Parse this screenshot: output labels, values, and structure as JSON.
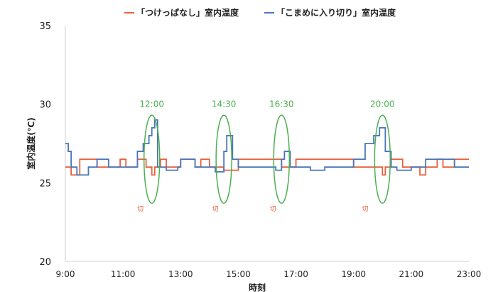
{
  "chart_data": {
    "type": "line",
    "title": "",
    "xlabel": "時刻",
    "ylabel": "室内温度(℃)",
    "xlim": [
      "9:00",
      "23:00"
    ],
    "ylim": [
      20,
      35
    ],
    "x_ticks": [
      "9:00",
      "11:00",
      "13:00",
      "15:00",
      "17:00",
      "19:00",
      "21:00",
      "23:00"
    ],
    "y_ticks": [
      "20",
      "25",
      "30",
      "35"
    ],
    "grid": false,
    "legend_position": "top",
    "series": [
      {
        "name": "「つけっぱなし」室内温度",
        "color": "#e8603c",
        "faded_color": "#f2b39d",
        "x": [
          "9:00",
          "9:12",
          "9:30",
          "9:42",
          "10:06",
          "10:30",
          "10:54",
          "11:06",
          "11:30",
          "11:48",
          "12:00",
          "12:06",
          "12:18",
          "12:30",
          "13:00",
          "13:30",
          "13:42",
          "14:00",
          "14:30",
          "15:00",
          "15:30",
          "16:00",
          "16:18",
          "16:30",
          "17:00",
          "17:30",
          "18:00",
          "18:30",
          "19:00",
          "19:30",
          "19:54",
          "20:00",
          "20:06",
          "20:18",
          "20:24",
          "20:42",
          "21:00",
          "21:18",
          "21:30",
          "21:54",
          "22:06",
          "22:30",
          "22:48",
          "23:00"
        ],
        "y": [
          26.0,
          25.5,
          26.5,
          26.5,
          26.0,
          26.0,
          26.5,
          26.0,
          26.5,
          26.0,
          25.5,
          26.0,
          26.5,
          26.0,
          26.5,
          26.0,
          26.5,
          26.0,
          25.8,
          26.5,
          26.5,
          26.5,
          26.5,
          26.0,
          26.5,
          26.5,
          26.5,
          26.5,
          26.0,
          26.0,
          26.0,
          25.5,
          26.0,
          26.5,
          26.5,
          26.0,
          26.0,
          25.5,
          26.0,
          26.5,
          26.0,
          26.5,
          26.5,
          26.5
        ]
      },
      {
        "name": "「こまめに入り切り」室内温度",
        "color": "#4a76b8",
        "faded_color": "#aab8d8",
        "x": [
          "9:00",
          "9:06",
          "9:12",
          "9:24",
          "9:48",
          "10:06",
          "10:30",
          "10:54",
          "11:06",
          "11:30",
          "11:42",
          "11:54",
          "12:00",
          "12:06",
          "12:12",
          "12:30",
          "12:54",
          "13:00",
          "13:30",
          "14:00",
          "14:12",
          "14:30",
          "14:36",
          "14:48",
          "15:00",
          "15:30",
          "16:00",
          "16:18",
          "16:30",
          "16:36",
          "16:48",
          "17:00",
          "17:30",
          "18:00",
          "18:30",
          "19:00",
          "19:24",
          "19:42",
          "19:54",
          "20:00",
          "20:06",
          "20:18",
          "20:30",
          "21:00",
          "21:30",
          "22:00",
          "22:30",
          "23:00"
        ],
        "y": [
          27.5,
          27.0,
          26.0,
          25.5,
          26.0,
          26.5,
          26.0,
          26.0,
          26.0,
          27.0,
          27.5,
          28.0,
          28.5,
          29.0,
          26.0,
          25.8,
          26.0,
          26.5,
          26.0,
          26.0,
          25.7,
          27.0,
          28.0,
          26.5,
          26.0,
          26.0,
          26.0,
          25.8,
          26.5,
          27.0,
          26.0,
          26.0,
          25.8,
          26.0,
          26.0,
          26.5,
          27.5,
          28.0,
          28.5,
          28.5,
          27.0,
          26.0,
          25.8,
          26.0,
          26.5,
          26.5,
          26.0,
          26.0
        ]
      }
    ],
    "annotations": [
      {
        "text": "12:00",
        "x": "12:00",
        "y": 30
      },
      {
        "text": "14:30",
        "x": "14:30",
        "y": 30
      },
      {
        "text": "16:30",
        "x": "16:30",
        "y": 30
      },
      {
        "text": "20:00",
        "x": "20:00",
        "y": 30
      },
      {
        "text": "切",
        "x": "11:36",
        "y": 23.2
      },
      {
        "text": "切",
        "x": "14:12",
        "y": 23.2
      },
      {
        "text": "切",
        "x": "16:12",
        "y": 23.2
      },
      {
        "text": "切",
        "x": "19:24",
        "y": 23.2
      }
    ],
    "annotation_color": "#4caf50",
    "kiri_color": "#e8603c"
  }
}
